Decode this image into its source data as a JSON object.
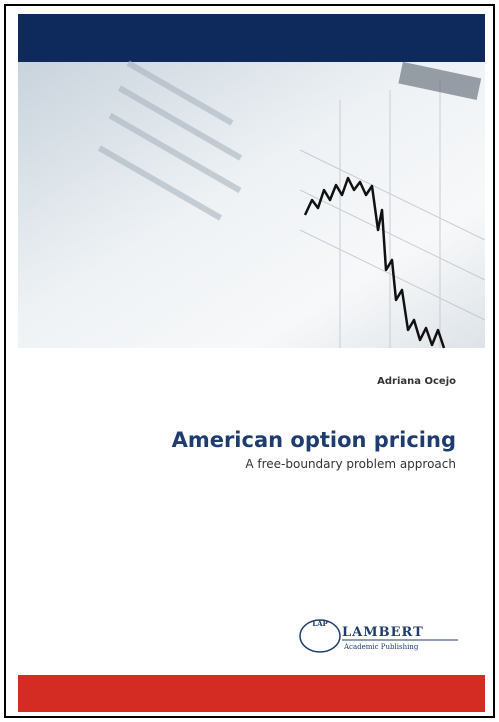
{
  "cover": {
    "author": "Adriana Ocejo",
    "title": "American option pricing",
    "subtitle": "A free-boundary problem approach",
    "publisher": {
      "logo": "LAP",
      "name": "LAMBERT",
      "tagline": "Academic Publishing"
    }
  }
}
